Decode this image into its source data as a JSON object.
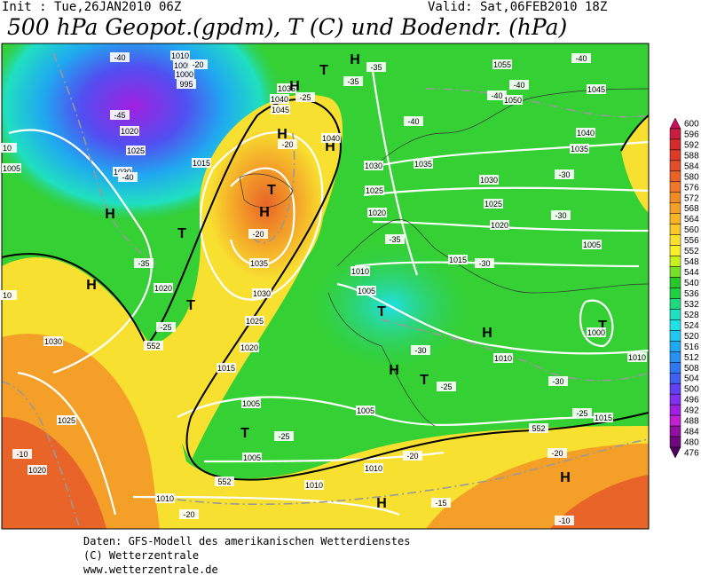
{
  "header": {
    "init": "Init : Tue,26JAN2010 06Z",
    "valid": "Valid: Sat,06FEB2010 18Z",
    "title": "500 hPa Geopot.(gpdm), T (C) und Bodendr. (hPa)"
  },
  "colorbar": {
    "labels": [
      600,
      596,
      592,
      588,
      584,
      580,
      576,
      572,
      568,
      564,
      560,
      556,
      552,
      548,
      544,
      540,
      536,
      532,
      528,
      524,
      520,
      516,
      512,
      508,
      504,
      500,
      496,
      492,
      488,
      484,
      480,
      476
    ]
  },
  "map_labels": [
    "-40",
    "1010",
    "1005",
    "1000",
    "995",
    "-45",
    "1020",
    "1025",
    "1030",
    "-40",
    "1015",
    "1005",
    "10",
    "H",
    "T",
    "-35",
    "H",
    "1020",
    "T",
    "-25",
    "1030",
    "552",
    "1035",
    "-20",
    "H",
    "T",
    "1030",
    "1025",
    "1020",
    "1015",
    "1040",
    "1045",
    "1035",
    "-25",
    "H",
    "T",
    "H",
    "-35",
    "-35",
    "H",
    "-20",
    "H",
    "1040",
    "-20",
    "1055",
    "-40",
    "-40",
    "-40",
    "1050",
    "1045",
    "-40",
    "1040",
    "1035",
    "1035",
    "1030",
    "1030",
    "-30",
    "1025",
    "1025",
    "1020",
    "-30",
    "1020",
    "-35",
    "1005",
    "1015",
    "-30",
    "1010",
    "1005",
    "T",
    "H",
    "T",
    "1000",
    "-30",
    "1010",
    "1010",
    "H",
    "T",
    "-30",
    "-25",
    "1005",
    "1005",
    "-25",
    "1015",
    "552",
    "T",
    "-25",
    "1005",
    "-20",
    "1010",
    "-20",
    "H",
    "1025",
    "-10",
    "1020",
    "552",
    "1010",
    "1010",
    "-20",
    "H",
    "-15",
    "-10",
    "10"
  ],
  "footer": [
    "Daten: GFS-Modell des amerikanischen Wetterdienstes",
    "(C) Wetterzentrale",
    "www.wetterzentrale.de"
  ]
}
